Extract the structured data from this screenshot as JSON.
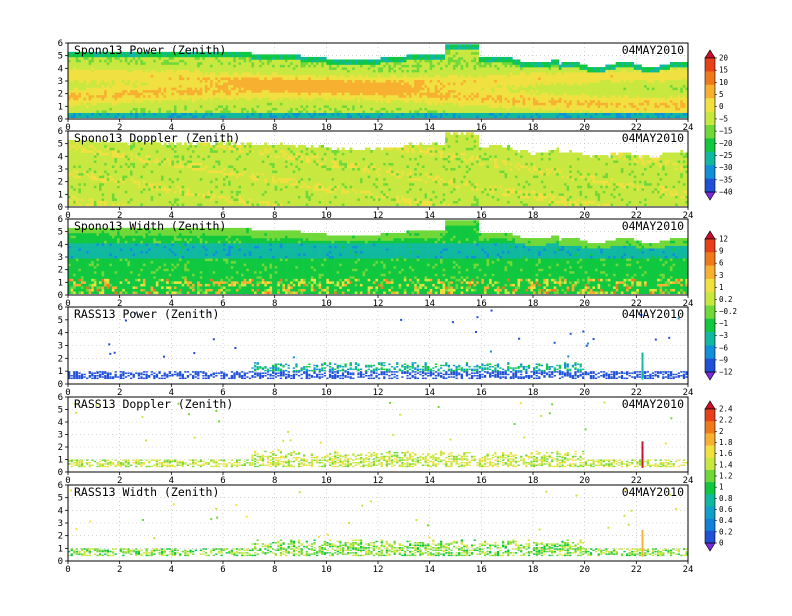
{
  "chart_data": [
    {
      "type": "heatmap",
      "title": "Spono13 Power (Zenith)",
      "date": "04MAY2010",
      "x_ticks": [
        0,
        2,
        4,
        6,
        8,
        10,
        12,
        14,
        16,
        18,
        20,
        22,
        24
      ],
      "y_ticks": [
        0,
        1,
        2,
        3,
        4,
        5,
        6
      ],
      "xlim": [
        0,
        24
      ],
      "ylim": [
        0,
        6
      ],
      "pattern": "power",
      "colorbar_group": "cb1"
    },
    {
      "type": "heatmap",
      "title": "Spono13 Doppler (Zenith)",
      "date": "04MAY2010",
      "x_ticks": [
        0,
        2,
        4,
        6,
        8,
        10,
        12,
        14,
        16,
        18,
        20,
        22,
        24
      ],
      "y_ticks": [
        0,
        1,
        2,
        3,
        4,
        5,
        6
      ],
      "xlim": [
        0,
        24
      ],
      "ylim": [
        0,
        6
      ],
      "pattern": "doppler",
      "colorbar_group": "cb1"
    },
    {
      "type": "heatmap",
      "title": "Spono13 Width (Zenith)",
      "date": "04MAY2010",
      "x_ticks": [
        0,
        2,
        4,
        6,
        8,
        10,
        12,
        14,
        16,
        18,
        20,
        22,
        24
      ],
      "y_ticks": [
        0,
        1,
        2,
        3,
        4,
        5,
        6
      ],
      "xlim": [
        0,
        24
      ],
      "ylim": [
        0,
        6
      ],
      "pattern": "width",
      "colorbar_group": "cb2"
    },
    {
      "type": "scatter",
      "title": "RASS13 Power (Zenith)",
      "date": "04MAY2010",
      "x_ticks": [
        0,
        2,
        4,
        6,
        8,
        10,
        12,
        14,
        16,
        18,
        20,
        22,
        24
      ],
      "y_ticks": [
        0,
        1,
        2,
        3,
        4,
        5,
        6
      ],
      "xlim": [
        0,
        24
      ],
      "ylim": [
        0,
        6
      ],
      "pattern": "rass_power",
      "colorbar_group": "cb2"
    },
    {
      "type": "scatter",
      "title": "RASS13 Doppler (Zenith)",
      "date": "04MAY2010",
      "x_ticks": [
        0,
        2,
        4,
        6,
        8,
        10,
        12,
        14,
        16,
        18,
        20,
        22,
        24
      ],
      "y_ticks": [
        0,
        1,
        2,
        3,
        4,
        5,
        6
      ],
      "xlim": [
        0,
        24
      ],
      "ylim": [
        0,
        6
      ],
      "pattern": "rass_doppler",
      "colorbar_group": "cb3"
    },
    {
      "type": "scatter",
      "title": "RASS13 Width (Zenith)",
      "date": "04MAY2010",
      "x_ticks": [
        0,
        2,
        4,
        6,
        8,
        10,
        12,
        14,
        16,
        18,
        20,
        22,
        24
      ],
      "y_ticks": [
        0,
        1,
        2,
        3,
        4,
        5,
        6
      ],
      "xlim": [
        0,
        24
      ],
      "ylim": [
        0,
        6
      ],
      "pattern": "rass_width",
      "colorbar_group": "cb3"
    }
  ],
  "colorbars": [
    {
      "id": "cb1",
      "labels": [
        "20",
        "15",
        "10",
        "5",
        "0",
        "−5",
        "−15",
        "−20",
        "−25",
        "−30",
        "−35",
        "−40"
      ],
      "colors": [
        "#c8102e",
        "#e8401a",
        "#f07a1a",
        "#f8b030",
        "#f0e040",
        "#c8e840",
        "#70d838",
        "#10c840",
        "#10b8a0",
        "#1090d8",
        "#2050d8",
        "#7a2ad8"
      ]
    },
    {
      "id": "cb2",
      "labels": [
        "12",
        "9",
        "6",
        "3",
        "1",
        "0.2",
        "−0.2",
        "−1",
        "−3",
        "−6",
        "−9",
        "−12"
      ],
      "colors": [
        "#c8102e",
        "#e8401a",
        "#f07a1a",
        "#f8b030",
        "#f0e040",
        "#c8e840",
        "#70d838",
        "#10c840",
        "#10b8a0",
        "#1090d8",
        "#2050d8",
        "#7a2ad8"
      ]
    },
    {
      "id": "cb3",
      "labels": [
        "2.4",
        "2.2",
        "2",
        "1.8",
        "1.6",
        "1.4",
        "1.2",
        "1",
        "0.8",
        "0.6",
        "0.4",
        "0.2",
        "0"
      ],
      "colors": [
        "#c8102e",
        "#e8401a",
        "#f07a1a",
        "#f8b030",
        "#f0e040",
        "#c8e840",
        "#70d838",
        "#10c840",
        "#10b8a0",
        "#10a0c8",
        "#1080d8",
        "#2050d8",
        "#7a2ad8"
      ]
    }
  ]
}
